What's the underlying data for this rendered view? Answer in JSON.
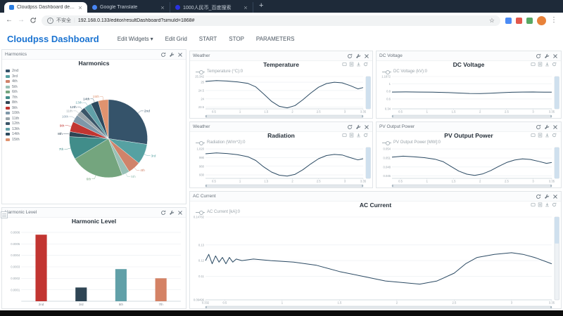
{
  "browser": {
    "tabs": [
      {
        "label": "Cloudpss Dashboard demo"
      },
      {
        "label": "Google Translate"
      },
      {
        "label": "1000人民币_百度搜索"
      }
    ],
    "new_tab": "+",
    "nav": {
      "back": "←",
      "forward": "→"
    },
    "address": {
      "security_label": "不安全",
      "url": "192.168.0.133/editor/resultDashboard?simuId=1868#",
      "star": "☆"
    },
    "menu_dots": "⋮"
  },
  "header": {
    "brand": "Cloudpss Dashboard",
    "menu": [
      {
        "label": "Edit Widgets",
        "caret": "▾"
      },
      {
        "label": "Edit Grid"
      },
      {
        "label": "START"
      },
      {
        "label": "STOP"
      },
      {
        "label": "PARAMETERS"
      }
    ]
  },
  "panels": [
    {
      "header": "Harmonics",
      "title": "Harmonics"
    },
    {
      "header": "Weather",
      "title": "Temperature",
      "legend": "Temperature (°C):0"
    },
    {
      "header": "DC Voltage",
      "title": "DC Voltage",
      "legend": "DC Voltage (kV):0"
    },
    {
      "header": "Weather",
      "title": "Radiation",
      "legend": "Radiation (W/m^2):0"
    },
    {
      "header": "PV Output Power",
      "title": "PV Output Power",
      "legend": "PV Output Power [MW]:0"
    },
    {
      "header": "AC Current",
      "title": "AC Current",
      "legend": "AC Current [kA]:0"
    },
    {
      "header": "Harmonic Level",
      "title": "Harmonic Level"
    }
  ],
  "colors": {
    "brand": "#1a73d1",
    "line": "#2b4a63",
    "tabstrip": "#1e2a39"
  },
  "chart_data": [
    {
      "type": "pie",
      "title": "Harmonics",
      "slices": [
        {
          "label": "2nd",
          "value": 26,
          "color": "#35536a"
        },
        {
          "label": "3rd",
          "value": 8,
          "color": "#56a1a2"
        },
        {
          "label": "4th",
          "value": 5,
          "color": "#d0836a"
        },
        {
          "label": "5th",
          "value": 3,
          "color": "#98c0b6"
        },
        {
          "label": "6th",
          "value": 21,
          "color": "#74a57e"
        },
        {
          "label": "7th",
          "value": 9,
          "color": "#418d8a"
        },
        {
          "label": "8th",
          "value": 2,
          "color": "#2f4554"
        },
        {
          "label": "9th",
          "value": 4,
          "color": "#c23531"
        },
        {
          "label": "10th",
          "value": 3,
          "color": "#7e97a8"
        },
        {
          "label": "11th",
          "value": 2,
          "color": "#9aa5ab"
        },
        {
          "label": "12th",
          "value": 2,
          "color": "#3a5568"
        },
        {
          "label": "13th",
          "value": 3,
          "color": "#61a0a8"
        },
        {
          "label": "14th",
          "value": 3,
          "color": "#2d4a5e"
        },
        {
          "label": "15th",
          "value": 4,
          "color": "#e0936f"
        }
      ]
    },
    {
      "type": "line",
      "title": "Temperature",
      "series": "Temperature (°C):0",
      "color": "#2b4a63",
      "xmin": 0.34,
      "xmax": 3.35,
      "ymin": 23.4,
      "ymax": 25.342,
      "yticks": [
        "25.342",
        "25",
        "24.5",
        "24",
        "23.5"
      ],
      "xticks": [
        "0.5",
        "1",
        "1.5",
        "2",
        "2.5",
        "3",
        "3.35"
      ],
      "points": [
        [
          0.34,
          25.05
        ],
        [
          0.55,
          25.1
        ],
        [
          0.75,
          25.07
        ],
        [
          0.95,
          25.02
        ],
        [
          1.15,
          24.93
        ],
        [
          1.3,
          24.72
        ],
        [
          1.45,
          24.3
        ],
        [
          1.6,
          23.85
        ],
        [
          1.75,
          23.55
        ],
        [
          1.9,
          23.46
        ],
        [
          2.05,
          23.6
        ],
        [
          2.2,
          23.95
        ],
        [
          2.35,
          24.35
        ],
        [
          2.5,
          24.7
        ],
        [
          2.65,
          24.92
        ],
        [
          2.8,
          25.0
        ],
        [
          2.95,
          24.96
        ],
        [
          3.1,
          24.8
        ],
        [
          3.25,
          24.6
        ],
        [
          3.35,
          24.68
        ]
      ]
    },
    {
      "type": "line",
      "title": "DC Voltage",
      "series": "DC Voltage (kV):0",
      "color": "#2b4a63",
      "xmin": 0.34,
      "xmax": 3.35,
      "ymin": 0.34,
      "ymax": 1.1872,
      "yticks": [
        "1.1872",
        "1",
        "0.8",
        "0.6",
        "0.34"
      ],
      "xticks": [
        "0.5",
        "1",
        "1.5",
        "2",
        "2.5",
        "3",
        "3.35"
      ],
      "points": [
        [
          0.34,
          0.781
        ],
        [
          0.6,
          0.784
        ],
        [
          0.85,
          0.781
        ],
        [
          1.1,
          0.778
        ],
        [
          1.35,
          0.77
        ],
        [
          1.6,
          0.755
        ],
        [
          1.8,
          0.744
        ],
        [
          2.0,
          0.74
        ],
        [
          2.2,
          0.75
        ],
        [
          2.4,
          0.764
        ],
        [
          2.6,
          0.775
        ],
        [
          2.8,
          0.78
        ],
        [
          3.0,
          0.782
        ],
        [
          3.2,
          0.776
        ],
        [
          3.35,
          0.779
        ]
      ]
    },
    {
      "type": "line",
      "title": "Radiation",
      "series": "Radiation (W/m^2):0",
      "color": "#2b4a63",
      "xmin": 0.34,
      "xmax": 3.35,
      "ymin": 918,
      "ymax": 1025,
      "yticks": [
        "1,020",
        "990",
        "960",
        "930"
      ],
      "xticks": [
        "0.5",
        "1",
        "1.5",
        "2",
        "2.5",
        "3",
        "3.35"
      ],
      "points": [
        [
          0.34,
          1003
        ],
        [
          0.55,
          1006
        ],
        [
          0.75,
          1004
        ],
        [
          0.95,
          1000
        ],
        [
          1.15,
          993
        ],
        [
          1.3,
          980
        ],
        [
          1.45,
          958
        ],
        [
          1.6,
          940
        ],
        [
          1.75,
          929
        ],
        [
          1.9,
          926
        ],
        [
          2.05,
          932
        ],
        [
          2.2,
          948
        ],
        [
          2.35,
          968
        ],
        [
          2.5,
          986
        ],
        [
          2.65,
          997
        ],
        [
          2.8,
          1001
        ],
        [
          2.95,
          999
        ],
        [
          3.1,
          990
        ],
        [
          3.25,
          982
        ],
        [
          3.35,
          986
        ]
      ]
    },
    {
      "type": "line",
      "title": "PV Output Power",
      "series": "PV Output Power [MW]:0",
      "color": "#2b4a63",
      "xmin": 0.34,
      "xmax": 3.35,
      "ymin": 0.0442,
      "ymax": 0.0545,
      "yticks": [
        "0.054",
        "0.051",
        "0.048",
        "0.045"
      ],
      "xticks": [
        "0.5",
        "1",
        "1.5",
        "2",
        "2.5",
        "3",
        "3.35"
      ],
      "points": [
        [
          0.34,
          0.0513
        ],
        [
          0.55,
          0.0516
        ],
        [
          0.75,
          0.0514
        ],
        [
          0.95,
          0.0511
        ],
        [
          1.15,
          0.0506
        ],
        [
          1.3,
          0.0498
        ],
        [
          1.45,
          0.0482
        ],
        [
          1.6,
          0.0466
        ],
        [
          1.75,
          0.0456
        ],
        [
          1.9,
          0.0452
        ],
        [
          2.05,
          0.0457
        ],
        [
          2.2,
          0.0468
        ],
        [
          2.35,
          0.0482
        ],
        [
          2.5,
          0.0495
        ],
        [
          2.65,
          0.0503
        ],
        [
          2.8,
          0.0507
        ],
        [
          2.95,
          0.0505
        ],
        [
          3.1,
          0.0499
        ],
        [
          3.25,
          0.0492
        ],
        [
          3.35,
          0.0495
        ]
      ]
    },
    {
      "type": "line",
      "title": "AC Current",
      "series": "AC Current [kA]:0",
      "color": "#2b4a63",
      "vsel": 0.32,
      "xmin": 0.332,
      "xmax": 3.35,
      "ymin": 0.09496,
      "ymax": 0.14782,
      "yticks": [
        "0.14782",
        "0.13",
        "0.12",
        "0.11",
        "0.09496"
      ],
      "xticks": [
        "0.332",
        "0.5",
        "1",
        "1.5",
        "2",
        "2.5",
        "3",
        "3.35"
      ],
      "points": [
        [
          0.332,
          0.12
        ],
        [
          0.36,
          0.124
        ],
        [
          0.39,
          0.118
        ],
        [
          0.42,
          0.123
        ],
        [
          0.45,
          0.119
        ],
        [
          0.48,
          0.122
        ],
        [
          0.51,
          0.118
        ],
        [
          0.54,
          0.122
        ],
        [
          0.57,
          0.119
        ],
        [
          0.6,
          0.121
        ],
        [
          0.65,
          0.12
        ],
        [
          0.75,
          0.121
        ],
        [
          0.9,
          0.12
        ],
        [
          1.1,
          0.119
        ],
        [
          1.3,
          0.117
        ],
        [
          1.5,
          0.113
        ],
        [
          1.7,
          0.11
        ],
        [
          1.9,
          0.107
        ],
        [
          2.05,
          0.106
        ],
        [
          2.2,
          0.105
        ],
        [
          2.35,
          0.107
        ],
        [
          2.5,
          0.112
        ],
        [
          2.6,
          0.118
        ],
        [
          2.7,
          0.122
        ],
        [
          2.85,
          0.124
        ],
        [
          3.0,
          0.125
        ],
        [
          3.1,
          0.124
        ],
        [
          3.2,
          0.122
        ],
        [
          3.35,
          0.118
        ]
      ]
    },
    {
      "type": "bar",
      "title": "Harmonic Level",
      "categories": [
        "2nd",
        "3rd",
        "5th",
        "7th"
      ],
      "values": [
        0.00058,
        0.00012,
        0.00028,
        0.0002
      ],
      "bar_colors": [
        "#c23531",
        "#2f4554",
        "#61a0a8",
        "#d48265"
      ],
      "ymax": 0.00063,
      "yticks": [
        "0.0006",
        "0.0005",
        "0.0004",
        "0.0003",
        "0.0002",
        "0.0001"
      ]
    }
  ]
}
